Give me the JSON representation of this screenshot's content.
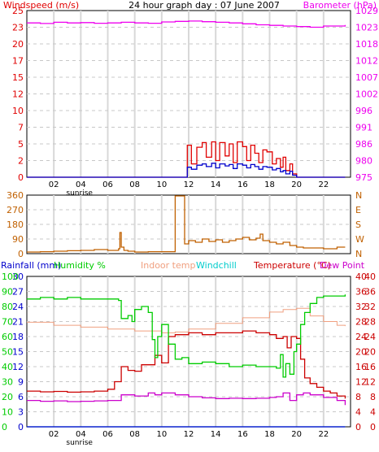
{
  "header": {
    "left_title": "Windspeed (m/s)",
    "center_title": "24 hour graph day : 07 June 2007",
    "right_title": "Barometer (hPa)"
  },
  "colors": {
    "wind": "#e00000",
    "gust": "#0000cc",
    "baro": "#ee00ee",
    "dir": "#c06000",
    "humidity": "#00cc00",
    "indoor": "#f0a080",
    "windchill": "#00cccc",
    "temperature": "#cc0000",
    "dewpoint": "#cc00cc",
    "rain": "#0000cc",
    "grid": "#c8c8c8",
    "hour_line": "#d8d8d8"
  },
  "x_ticks": [
    "02",
    "04",
    "06",
    "08",
    "10",
    "12",
    "14",
    "16",
    "18",
    "20",
    "22"
  ],
  "sunrise_label": "sunrise",
  "chart_data": [
    {
      "type": "line",
      "name": "wind",
      "title": "24 hour graph day : 07 June 2007",
      "xlim": [
        0,
        24
      ],
      "y_left_label": "Windspeed (m/s)",
      "y_right_label": "Barometer (hPa)",
      "ylim_left": [
        0,
        25
      ],
      "ylim_right": [
        975,
        1029
      ],
      "y_left_ticks": [
        "0",
        "2",
        "5",
        "7",
        "10",
        "12",
        "15",
        "17",
        "20",
        "23",
        "25"
      ],
      "y_right_ticks": [
        "975",
        "980",
        "986",
        "991",
        "996",
        "1002",
        "1007",
        "1012",
        "1018",
        "1023",
        "1029"
      ],
      "series": [
        {
          "name": "Barometer",
          "axis": "right",
          "x": [
            0,
            1,
            2,
            3,
            4,
            5,
            6,
            7,
            8,
            9,
            10,
            11,
            12,
            13,
            14,
            15,
            16,
            17,
            18,
            19,
            20,
            21,
            22,
            23.6
          ],
          "y": [
            1025.0,
            1024.8,
            1025.2,
            1025.0,
            1025.1,
            1024.9,
            1025.0,
            1025.2,
            1025.0,
            1024.9,
            1025.3,
            1025.5,
            1025.6,
            1025.4,
            1025.2,
            1025.0,
            1024.7,
            1024.4,
            1024.2,
            1024.0,
            1023.8,
            1023.6,
            1024.0,
            1024.3
          ]
        },
        {
          "name": "Gust",
          "axis": "left",
          "x": [
            0,
            11,
            11.6,
            11.9,
            12.2,
            12.6,
            13.0,
            13.3,
            13.7,
            14.0,
            14.3,
            14.7,
            15.0,
            15.3,
            15.6,
            16.0,
            16.3,
            16.6,
            16.9,
            17.2,
            17.5,
            17.8,
            18.2,
            18.5,
            18.8,
            19.0,
            19.2,
            19.5,
            19.7,
            20.0,
            23.6
          ],
          "y": [
            0,
            0,
            0,
            4.8,
            2.0,
            4.5,
            5.2,
            3.0,
            5.3,
            2.5,
            5.2,
            3.2,
            5.0,
            2.2,
            5.3,
            4.6,
            2.5,
            4.8,
            3.6,
            2.2,
            4.1,
            3.8,
            2.0,
            2.8,
            1.5,
            3.0,
            1.0,
            2.0,
            0.5,
            0,
            0
          ]
        },
        {
          "name": "Windspeed",
          "axis": "left",
          "x": [
            0,
            11,
            11.6,
            11.9,
            12.2,
            12.6,
            13.0,
            13.3,
            13.7,
            14.0,
            14.3,
            14.7,
            15.0,
            15.3,
            15.6,
            16.0,
            16.3,
            16.6,
            16.9,
            17.2,
            17.5,
            17.8,
            18.2,
            18.5,
            18.8,
            19.0,
            19.2,
            19.5,
            19.7,
            20.0,
            23.6
          ],
          "y": [
            0,
            0,
            0,
            1.5,
            1.2,
            1.8,
            2.0,
            1.6,
            2.1,
            1.4,
            2.0,
            1.7,
            1.9,
            1.3,
            2.0,
            1.8,
            1.4,
            1.9,
            1.6,
            1.2,
            1.6,
            1.5,
            1.1,
            1.3,
            0.8,
            1.0,
            0.5,
            0.9,
            0.3,
            0,
            0
          ]
        }
      ]
    },
    {
      "type": "line",
      "name": "direction",
      "xlim": [
        0,
        24
      ],
      "ylim": [
        0,
        360
      ],
      "y_left_ticks": [
        "0",
        "90",
        "180",
        "270",
        "360"
      ],
      "y_right_ticks": [
        "N",
        "W",
        "S",
        "E",
        "N"
      ],
      "series": [
        {
          "name": "Wind direction",
          "x": [
            0,
            1,
            2,
            3,
            4,
            5,
            6,
            6.8,
            6.9,
            7.0,
            7.2,
            7.5,
            8,
            9,
            10,
            10.9,
            11.0,
            11.6,
            11.7,
            12,
            12.5,
            13,
            13.5,
            14,
            14.5,
            15,
            15.5,
            16,
            16.5,
            17,
            17.3,
            17.5,
            18,
            18.5,
            19,
            19.5,
            20,
            20.5,
            21,
            22,
            22.5,
            23,
            23.6
          ],
          "y": [
            10,
            12,
            15,
            18,
            20,
            25,
            20,
            30,
            130,
            40,
            20,
            15,
            10,
            12,
            12,
            12,
            355,
            355,
            60,
            80,
            70,
            90,
            75,
            85,
            70,
            80,
            90,
            100,
            85,
            95,
            120,
            80,
            70,
            60,
            70,
            50,
            40,
            35,
            35,
            30,
            30,
            40,
            40
          ]
        }
      ]
    },
    {
      "type": "line",
      "name": "temperature",
      "xlim": [
        0,
        24
      ],
      "legend": [
        "Rainfall (mm)",
        "Humidity %",
        "Indoor temp",
        "Windchill",
        "Temperature (°C)",
        "Dew Point"
      ],
      "y_rain_ticks": [
        "0",
        "3",
        "6",
        "9",
        "12",
        "15",
        "18",
        "21",
        "24",
        "27",
        "30"
      ],
      "y_hum_ticks": [
        "0",
        "10",
        "20",
        "30",
        "40",
        "50",
        "60",
        "70",
        "80",
        "90",
        "100"
      ],
      "y_right1_ticks": [
        "0",
        "4",
        "8",
        "12",
        "16",
        "20",
        "24",
        "28",
        "32",
        "36",
        "40"
      ],
      "y_right2_ticks": [
        "0",
        "4",
        "8",
        "12",
        "16",
        "20",
        "24",
        "28",
        "32",
        "36",
        "40"
      ],
      "series": [
        {
          "name": "Humidity",
          "axis": "humidity",
          "ylim": [
            0,
            100
          ],
          "x": [
            0,
            1,
            2,
            3,
            4,
            5,
            6,
            6.8,
            7.0,
            7.5,
            7.8,
            8,
            8.5,
            9,
            9.3,
            9.5,
            9.7,
            10,
            10.5,
            11,
            11.5,
            12,
            13,
            14,
            15,
            16,
            17,
            18,
            18.5,
            18.8,
            19,
            19.2,
            19.5,
            19.8,
            20,
            20.3,
            20.6,
            21,
            21.5,
            22,
            22.5,
            23,
            23.6
          ],
          "y": [
            85,
            86,
            85,
            86,
            85,
            85,
            85,
            84,
            72,
            74,
            70,
            78,
            80,
            76,
            58,
            46,
            60,
            68,
            55,
            45,
            46,
            42,
            43,
            42,
            40,
            41,
            40,
            40,
            39,
            48,
            33,
            42,
            35,
            50,
            55,
            68,
            76,
            82,
            86,
            87,
            87,
            87,
            88
          ]
        },
        {
          "name": "Temperature",
          "axis": "temp",
          "ylim": [
            0,
            40
          ],
          "x": [
            0,
            1,
            2,
            3,
            4,
            5,
            6,
            6.5,
            7,
            7.5,
            8,
            8.5,
            9,
            9.5,
            10,
            10.5,
            11,
            12,
            13,
            14,
            15,
            16,
            17,
            18,
            18.5,
            19,
            19.3,
            19.6,
            20,
            20.3,
            20.6,
            21,
            21.5,
            22,
            22.5,
            23,
            23.6
          ],
          "y": [
            9.5,
            9.3,
            9.4,
            9.2,
            9.3,
            9.5,
            10.0,
            12,
            16,
            15,
            14.8,
            16.5,
            16.5,
            19,
            17,
            24,
            24.5,
            25,
            24.5,
            25,
            25,
            25.5,
            25,
            24.5,
            23.5,
            24,
            21,
            24,
            23.5,
            18,
            13,
            11.5,
            10.5,
            9.5,
            9.0,
            8.2,
            7.5
          ]
        },
        {
          "name": "Dew Point",
          "axis": "temp",
          "ylim": [
            0,
            40
          ],
          "x": [
            0,
            1,
            2,
            3,
            4,
            5,
            6,
            7,
            8,
            9,
            9.5,
            10,
            11,
            12,
            13,
            14,
            15,
            16,
            17,
            18,
            18.5,
            19,
            19.5,
            20,
            20.5,
            21,
            22,
            23,
            23.6
          ],
          "y": [
            7.0,
            6.8,
            6.9,
            6.7,
            6.8,
            6.9,
            7.0,
            8.5,
            8.2,
            9.0,
            8.5,
            9.0,
            8.5,
            8.0,
            7.7,
            7.5,
            7.6,
            7.5,
            7.6,
            7.8,
            8.0,
            9.0,
            7.0,
            8.5,
            9.0,
            8.5,
            7.8,
            7.0,
            5.8
          ]
        },
        {
          "name": "Indoor temp",
          "axis": "temp",
          "ylim": [
            0,
            40
          ],
          "x": [
            0,
            2,
            4,
            6,
            8,
            10,
            11,
            12,
            14,
            16,
            18,
            19,
            20,
            21,
            22,
            23,
            23.6
          ],
          "y": [
            27.8,
            27.0,
            26.5,
            26.0,
            25.5,
            25.0,
            25.2,
            26.0,
            27.5,
            29.0,
            30.5,
            31.2,
            31.5,
            29.5,
            28.0,
            27.0,
            26.8
          ]
        },
        {
          "name": "Windchill",
          "axis": "temp",
          "ylim": [
            0,
            40
          ],
          "x": [
            0,
            23.6
          ],
          "y": [
            0,
            0
          ]
        },
        {
          "name": "Rainfall",
          "axis": "rain",
          "ylim": [
            0,
            30
          ],
          "x": [
            0,
            23.6
          ],
          "y": [
            0,
            0
          ]
        }
      ]
    }
  ]
}
